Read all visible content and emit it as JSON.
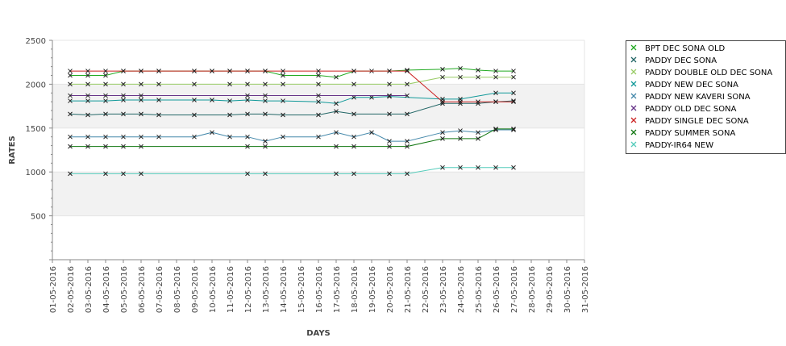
{
  "chart_data": {
    "type": "line",
    "xlabel": "DAYS",
    "ylabel": "RATES",
    "ylim": [
      0,
      2500
    ],
    "y_ticks": [
      500,
      1000,
      1500,
      2000,
      2500
    ],
    "x": [
      "01-05-2016",
      "02-05-2016",
      "03-05-2016",
      "04-05-2016",
      "05-05-2016",
      "06-05-2016",
      "07-05-2016",
      "08-05-2016",
      "09-05-2016",
      "10-05-2016",
      "11-05-2016",
      "12-05-2016",
      "13-05-2016",
      "14-05-2016",
      "15-05-2016",
      "16-05-2016",
      "17-05-2016",
      "18-05-2016",
      "19-05-2016",
      "20-05-2016",
      "21-05-2016",
      "22-05-2016",
      "23-05-2016",
      "24-05-2016",
      "25-05-2016",
      "26-05-2016",
      "27-05-2016",
      "28-05-2016",
      "29-05-2016",
      "30-05-2016",
      "31-05-2016"
    ],
    "legend_position": "right",
    "grid": "alternating horizontal bands",
    "series": [
      {
        "name": "BPT DEC SONA OLD",
        "color": "#22aa22",
        "points": [
          [
            "02-05-2016",
            2100
          ],
          [
            "03-05-2016",
            2100
          ],
          [
            "04-05-2016",
            2100
          ],
          [
            "05-05-2016",
            2150
          ],
          [
            "06-05-2016",
            2150
          ],
          [
            "07-05-2016",
            2150
          ],
          [
            "09-05-2016",
            2150
          ],
          [
            "10-05-2016",
            2150
          ],
          [
            "11-05-2016",
            2150
          ],
          [
            "12-05-2016",
            2150
          ],
          [
            "13-05-2016",
            2150
          ],
          [
            "14-05-2016",
            2100
          ],
          [
            "16-05-2016",
            2100
          ],
          [
            "17-05-2016",
            2080
          ],
          [
            "18-05-2016",
            2150
          ],
          [
            "19-05-2016",
            2150
          ],
          [
            "20-05-2016",
            2150
          ],
          [
            "21-05-2016",
            2160
          ],
          [
            "23-05-2016",
            2170
          ],
          [
            "24-05-2016",
            2180
          ],
          [
            "25-05-2016",
            2160
          ],
          [
            "26-05-2016",
            2150
          ],
          [
            "27-05-2016",
            2150
          ]
        ]
      },
      {
        "name": "PADDY DEC SONA",
        "color": "#226666",
        "points": [
          [
            "02-05-2016",
            1660
          ],
          [
            "03-05-2016",
            1650
          ],
          [
            "04-05-2016",
            1660
          ],
          [
            "05-05-2016",
            1660
          ],
          [
            "06-05-2016",
            1660
          ],
          [
            "07-05-2016",
            1650
          ],
          [
            "09-05-2016",
            1650
          ],
          [
            "11-05-2016",
            1650
          ],
          [
            "12-05-2016",
            1660
          ],
          [
            "13-05-2016",
            1660
          ],
          [
            "14-05-2016",
            1650
          ],
          [
            "16-05-2016",
            1650
          ],
          [
            "17-05-2016",
            1690
          ],
          [
            "18-05-2016",
            1660
          ],
          [
            "20-05-2016",
            1660
          ],
          [
            "21-05-2016",
            1660
          ],
          [
            "23-05-2016",
            1780
          ],
          [
            "24-05-2016",
            1780
          ],
          [
            "25-05-2016",
            1780
          ],
          [
            "26-05-2016",
            1800
          ],
          [
            "27-05-2016",
            1810
          ]
        ]
      },
      {
        "name": "PADDY DOUBLE OLD DEC SONA",
        "color": "#99cc66",
        "points": [
          [
            "02-05-2016",
            2000
          ],
          [
            "03-05-2016",
            2000
          ],
          [
            "04-05-2016",
            2000
          ],
          [
            "05-05-2016",
            2000
          ],
          [
            "06-05-2016",
            2000
          ],
          [
            "07-05-2016",
            2000
          ],
          [
            "09-05-2016",
            2000
          ],
          [
            "11-05-2016",
            2000
          ],
          [
            "12-05-2016",
            2000
          ],
          [
            "13-05-2016",
            2000
          ],
          [
            "14-05-2016",
            2000
          ],
          [
            "16-05-2016",
            2000
          ],
          [
            "18-05-2016",
            2000
          ],
          [
            "20-05-2016",
            2000
          ],
          [
            "21-05-2016",
            2000
          ],
          [
            "23-05-2016",
            2080
          ],
          [
            "24-05-2016",
            2080
          ],
          [
            "25-05-2016",
            2080
          ],
          [
            "26-05-2016",
            2080
          ],
          [
            "27-05-2016",
            2080
          ]
        ]
      },
      {
        "name": "PADDY NEW DEC SONA",
        "color": "#119999",
        "points": [
          [
            "02-05-2016",
            1810
          ],
          [
            "03-05-2016",
            1810
          ],
          [
            "04-05-2016",
            1810
          ],
          [
            "05-05-2016",
            1820
          ],
          [
            "06-05-2016",
            1820
          ],
          [
            "07-05-2016",
            1820
          ],
          [
            "09-05-2016",
            1820
          ],
          [
            "10-05-2016",
            1820
          ],
          [
            "11-05-2016",
            1810
          ],
          [
            "12-05-2016",
            1820
          ],
          [
            "13-05-2016",
            1810
          ],
          [
            "14-05-2016",
            1810
          ],
          [
            "16-05-2016",
            1800
          ],
          [
            "17-05-2016",
            1780
          ],
          [
            "18-05-2016",
            1850
          ],
          [
            "19-05-2016",
            1850
          ],
          [
            "20-05-2016",
            1860
          ],
          [
            "23-05-2016",
            1830
          ],
          [
            "24-05-2016",
            1830
          ],
          [
            "26-05-2016",
            1900
          ],
          [
            "27-05-2016",
            1900
          ]
        ]
      },
      {
        "name": "PADDY NEW KAVERI SONA",
        "color": "#4488aa",
        "points": [
          [
            "02-05-2016",
            1400
          ],
          [
            "03-05-2016",
            1400
          ],
          [
            "04-05-2016",
            1400
          ],
          [
            "05-05-2016",
            1400
          ],
          [
            "06-05-2016",
            1400
          ],
          [
            "07-05-2016",
            1400
          ],
          [
            "09-05-2016",
            1400
          ],
          [
            "10-05-2016",
            1450
          ],
          [
            "11-05-2016",
            1400
          ],
          [
            "12-05-2016",
            1400
          ],
          [
            "13-05-2016",
            1350
          ],
          [
            "14-05-2016",
            1400
          ],
          [
            "16-05-2016",
            1400
          ],
          [
            "17-05-2016",
            1450
          ],
          [
            "18-05-2016",
            1400
          ],
          [
            "19-05-2016",
            1450
          ],
          [
            "20-05-2016",
            1350
          ],
          [
            "21-05-2016",
            1350
          ],
          [
            "23-05-2016",
            1450
          ],
          [
            "24-05-2016",
            1470
          ],
          [
            "25-05-2016",
            1450
          ],
          [
            "26-05-2016",
            1480
          ],
          [
            "27-05-2016",
            1480
          ]
        ]
      },
      {
        "name": "PADDY OLD DEC SONA",
        "color": "#663388",
        "points": [
          [
            "02-05-2016",
            1870
          ],
          [
            "03-05-2016",
            1870
          ],
          [
            "04-05-2016",
            1870
          ],
          [
            "05-05-2016",
            1870
          ],
          [
            "06-05-2016",
            1870
          ],
          [
            "12-05-2016",
            1870
          ],
          [
            "13-05-2016",
            1870
          ],
          [
            "16-05-2016",
            1870
          ],
          [
            "20-05-2016",
            1870
          ],
          [
            "21-05-2016",
            1870
          ]
        ]
      },
      {
        "name": "PADDY SINGLE DEC SONA",
        "color": "#cc2222",
        "points": [
          [
            "02-05-2016",
            2150
          ],
          [
            "03-05-2016",
            2150
          ],
          [
            "04-05-2016",
            2150
          ],
          [
            "05-05-2016",
            2150
          ],
          [
            "06-05-2016",
            2150
          ],
          [
            "07-05-2016",
            2150
          ],
          [
            "09-05-2016",
            2150
          ],
          [
            "10-05-2016",
            2150
          ],
          [
            "11-05-2016",
            2150
          ],
          [
            "12-05-2016",
            2150
          ],
          [
            "13-05-2016",
            2150
          ],
          [
            "14-05-2016",
            2150
          ],
          [
            "16-05-2016",
            2150
          ],
          [
            "18-05-2016",
            2150
          ],
          [
            "20-05-2016",
            2150
          ],
          [
            "21-05-2016",
            2150
          ],
          [
            "23-05-2016",
            1800
          ],
          [
            "24-05-2016",
            1800
          ],
          [
            "25-05-2016",
            1800
          ],
          [
            "26-05-2016",
            1800
          ],
          [
            "27-05-2016",
            1800
          ]
        ]
      },
      {
        "name": "PADDY SUMMER SONA",
        "color": "#117711",
        "points": [
          [
            "02-05-2016",
            1290
          ],
          [
            "03-05-2016",
            1290
          ],
          [
            "04-05-2016",
            1290
          ],
          [
            "05-05-2016",
            1290
          ],
          [
            "06-05-2016",
            1290
          ],
          [
            "12-05-2016",
            1290
          ],
          [
            "13-05-2016",
            1290
          ],
          [
            "17-05-2016",
            1290
          ],
          [
            "18-05-2016",
            1290
          ],
          [
            "20-05-2016",
            1290
          ],
          [
            "21-05-2016",
            1290
          ],
          [
            "23-05-2016",
            1380
          ],
          [
            "24-05-2016",
            1380
          ],
          [
            "25-05-2016",
            1380
          ],
          [
            "26-05-2016",
            1490
          ],
          [
            "27-05-2016",
            1490
          ]
        ]
      },
      {
        "name": "PADDY-IR64 NEW",
        "color": "#55ccbb",
        "points": [
          [
            "02-05-2016",
            980
          ],
          [
            "04-05-2016",
            980
          ],
          [
            "05-05-2016",
            980
          ],
          [
            "06-05-2016",
            980
          ],
          [
            "12-05-2016",
            980
          ],
          [
            "13-05-2016",
            980
          ],
          [
            "17-05-2016",
            980
          ],
          [
            "18-05-2016",
            980
          ],
          [
            "20-05-2016",
            980
          ],
          [
            "21-05-2016",
            980
          ],
          [
            "23-05-2016",
            1050
          ],
          [
            "24-05-2016",
            1050
          ],
          [
            "25-05-2016",
            1050
          ],
          [
            "26-05-2016",
            1050
          ],
          [
            "27-05-2016",
            1050
          ]
        ]
      }
    ]
  }
}
